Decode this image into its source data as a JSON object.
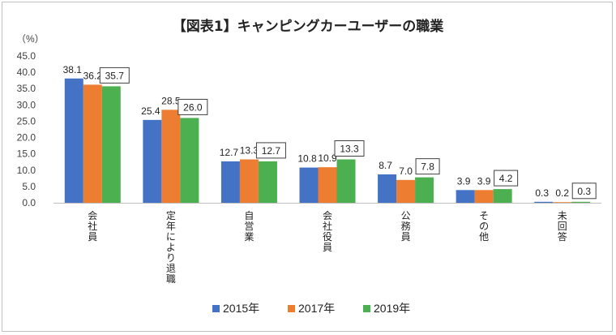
{
  "chart_data": {
    "type": "bar",
    "title": "【図表1】キャンピングカーユーザーの職業",
    "unit_label": "（%）",
    "ylim": [
      0,
      45
    ],
    "yticks": [
      "0.0",
      "5.0",
      "10.0",
      "15.0",
      "20.0",
      "25.0",
      "30.0",
      "35.0",
      "40.0",
      "45.0"
    ],
    "categories": [
      "会社員",
      "定年により退職",
      "自営業",
      "会社役員",
      "公務員",
      "その他",
      "未回答"
    ],
    "series": [
      {
        "name": "2015年",
        "color": "#4472c4",
        "values": [
          38.1,
          25.4,
          12.7,
          10.8,
          8.7,
          3.9,
          0.3
        ],
        "labels": [
          "38.1",
          "25.4",
          "12.7",
          "10.8",
          "8.7",
          "3.9",
          "0.3"
        ]
      },
      {
        "name": "2017年",
        "color": "#ed7d31",
        "values": [
          36.2,
          28.5,
          13.3,
          10.9,
          7.0,
          3.9,
          0.2
        ],
        "labels": [
          "36.2",
          "28.5",
          "13.3",
          "10.9",
          "7.0",
          "3.9",
          "0.2"
        ]
      },
      {
        "name": "2019年",
        "color": "#4caf50",
        "values": [
          35.7,
          26.0,
          12.7,
          13.3,
          7.8,
          4.2,
          0.3
        ],
        "labels": [
          "35.7",
          "26.0",
          "12.7",
          "13.3",
          "7.8",
          "4.2",
          "0.3"
        ]
      }
    ],
    "boxed_series": "2019年",
    "grid": false,
    "legend_position": "bottom"
  }
}
